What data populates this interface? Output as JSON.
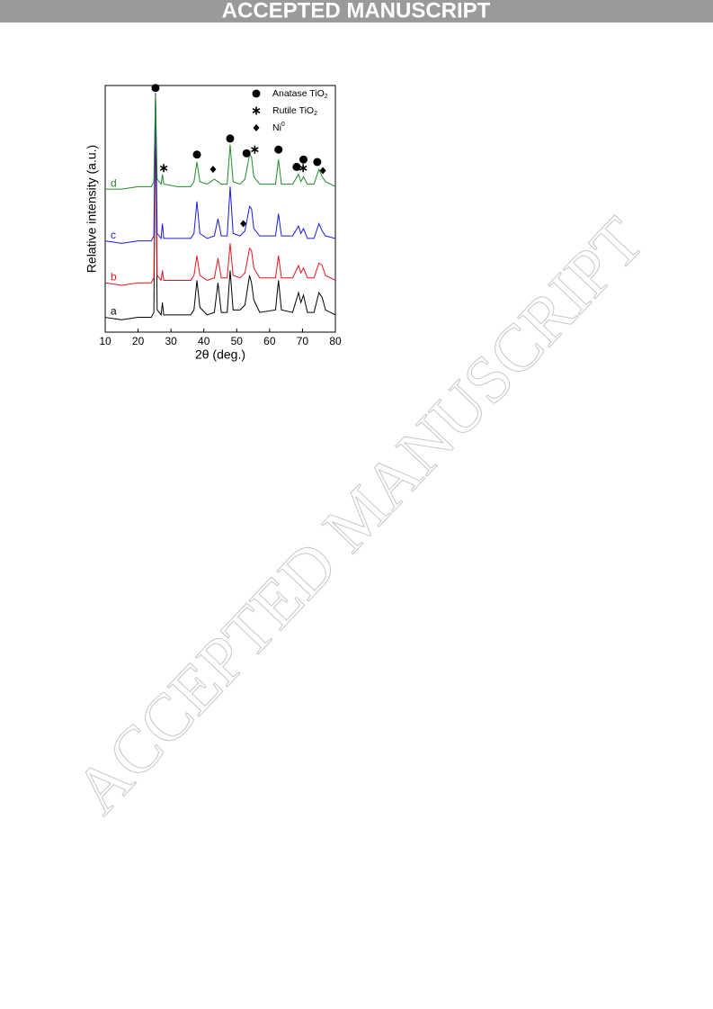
{
  "header": "ACCEPTED MANUSCRIPT",
  "watermark": "ACCEPTED MANUSCRIPT",
  "chart_data": {
    "type": "line",
    "x_label": "2θ (deg.)",
    "y_label": "Relative intensity (a.u.)",
    "xlim": [
      10,
      80
    ],
    "xticks": [
      10,
      20,
      30,
      40,
      50,
      60,
      70,
      80
    ],
    "ylim": [
      0,
      100
    ],
    "x": [
      10,
      15,
      20,
      24,
      24.8,
      25.3,
      25.8,
      27,
      27.4,
      27.8,
      32,
      36,
      37.0,
      37.9,
      38.8,
      41,
      43.2,
      44.3,
      45.3,
      47.1,
      48.0,
      48.9,
      51,
      52.5,
      53.9,
      54.5,
      55.2,
      57,
      61.8,
      62.7,
      63.6,
      67,
      68.8,
      69.5,
      70.3,
      71.5,
      73.5,
      75.0,
      76.0,
      77,
      80
    ],
    "series": [
      {
        "name": "a",
        "color": "#000000",
        "values": [
          6,
          5,
          6,
          6,
          8,
          95,
          9,
          7,
          12,
          7,
          7,
          7,
          9,
          21,
          10,
          7,
          8,
          20,
          8,
          8,
          25,
          9,
          9,
          11,
          23,
          20,
          13,
          8,
          9,
          21,
          9,
          8,
          16,
          12,
          15,
          8,
          8,
          16,
          14,
          9,
          7
        ]
      },
      {
        "name": "b",
        "color": "#e8141c",
        "values": [
          20,
          19,
          20,
          20,
          22,
          96,
          23,
          21,
          25,
          21,
          21,
          21,
          23,
          31,
          23,
          21,
          22,
          30,
          22,
          22,
          36,
          23,
          22,
          24,
          34,
          33,
          26,
          22,
          22,
          31,
          22,
          22,
          27,
          24,
          26,
          22,
          22,
          28,
          27,
          23,
          21
        ]
      },
      {
        "name": "c",
        "color": "#1a1adc",
        "values": [
          37,
          36,
          37,
          37,
          39,
          97,
          40,
          38,
          44,
          38,
          38,
          38,
          40,
          53,
          40,
          38,
          39,
          46,
          39,
          39,
          59,
          40,
          39,
          41,
          51,
          50,
          42,
          39,
          39,
          48,
          39,
          39,
          43,
          40,
          42,
          38,
          38,
          44,
          41,
          39,
          38
        ]
      },
      {
        "name": "d",
        "color": "#1f8a2a",
        "values": [
          58,
          58,
          59,
          59,
          61,
          96,
          62,
          60,
          64,
          60,
          59,
          59,
          61,
          69,
          61,
          60,
          62,
          61,
          60,
          60,
          76,
          61,
          60,
          62,
          72,
          71,
          63,
          60,
          60,
          70,
          60,
          60,
          64,
          61,
          63,
          60,
          60,
          66,
          63,
          61,
          59
        ]
      }
    ],
    "markers": [
      {
        "kind": "circle",
        "x": 25.3,
        "y": 99
      },
      {
        "kind": "circle",
        "x": 37.9,
        "y": 72
      },
      {
        "kind": "circle",
        "x": 48,
        "y": 78.5
      },
      {
        "kind": "circle",
        "x": 53,
        "y": 72.5
      },
      {
        "kind": "circle",
        "x": 62.7,
        "y": 74
      },
      {
        "kind": "circle",
        "x": 68.2,
        "y": 67
      },
      {
        "kind": "circle",
        "x": 70.3,
        "y": 70
      },
      {
        "kind": "circle",
        "x": 74.5,
        "y": 69
      },
      {
        "kind": "asterisk",
        "x": 27.8,
        "y": 66.5
      },
      {
        "kind": "asterisk",
        "x": 55.5,
        "y": 74
      },
      {
        "kind": "asterisk",
        "x": 70.2,
        "y": 66.5
      },
      {
        "kind": "diamond",
        "x": 42.8,
        "y": 66
      },
      {
        "kind": "diamond",
        "x": 52,
        "y": 44
      },
      {
        "kind": "diamond",
        "x": 76.2,
        "y": 65.5
      }
    ],
    "legend": [
      {
        "kind": "circle",
        "label": "Anatase TiO",
        "sub": "2"
      },
      {
        "kind": "asterisk",
        "label": "Rutile TiO",
        "sub": "2"
      },
      {
        "kind": "diamond",
        "label": "Ni",
        "sup": "0"
      }
    ]
  }
}
